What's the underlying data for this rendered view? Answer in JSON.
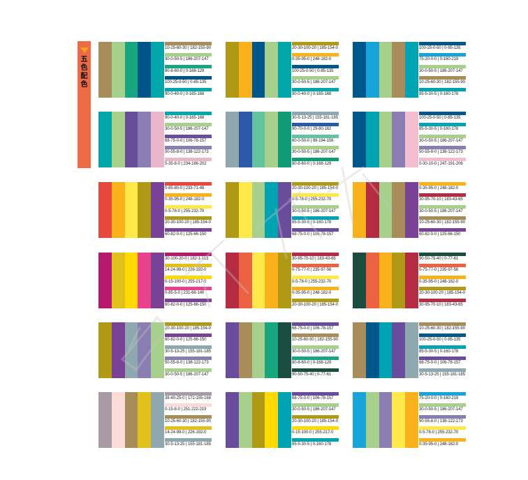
{
  "side_tab": {
    "text": "五色配色"
  },
  "palettes": [
    [
      {
        "hex": "#a88d5b",
        "label": "10-25-60-30 | 182-155-90"
      },
      {
        "hex": "#a8d08d",
        "label": "30-0-50-5 | 186-207-147"
      },
      {
        "hex": "#17a680",
        "label": "80-8-60-0 | 0-168-129"
      },
      {
        "hex": "#00548a",
        "label": "100-25-0-50 | 0-85-135"
      },
      {
        "hex": "#00a6a9",
        "label": "90-0-40-0 | 0-165-168"
      }
    ],
    [
      {
        "hex": "#b09a15",
        "label": "20-30-100-20 | 185-154-0"
      },
      {
        "hex": "#f9b21b",
        "label": "0-35-95-0 | 248-182-0"
      },
      {
        "hex": "#00578c",
        "label": "100-25-0-50 | 0-85-135"
      },
      {
        "hex": "#a8d08d",
        "label": "30-0-50-5 | 186-207-147"
      },
      {
        "hex": "#00a6a9",
        "label": "90-0-40-0 | 0-165-168"
      }
    ],
    [
      {
        "hex": "#00578c",
        "label": "100-25-0-50 | 0-85-135"
      },
      {
        "hex": "#18a3db",
        "label": "75-20-0-0 | 0-160-219"
      },
      {
        "hex": "#a8d08d",
        "label": "30-0-50-5 | 186-207-147"
      },
      {
        "hex": "#a88d5b",
        "label": "10-25-60-30 | 182-155-90"
      },
      {
        "hex": "#00a3b2",
        "label": "85-5-30-5 | 0-160-178"
      }
    ],
    [
      {
        "hex": "#00a6a9",
        "label": "90-0-40-0 | 0-165-168"
      },
      {
        "hex": "#a8d08d",
        "label": "30-0-50-5 | 186-207-147"
      },
      {
        "hex": "#6a4c9c",
        "label": "68-75-0-0 | 106-78-157"
      },
      {
        "hex": "#8a7db2",
        "label": "50-55-8-0 | 138-122-173"
      },
      {
        "hex": "#eab6ca",
        "label": "5-35-8-0 | 234-186-202"
      }
    ],
    [
      {
        "hex": "#8fa8b0",
        "label": "30-5-13-25 | 155-181-185"
      },
      {
        "hex": "#2c58a8",
        "label": "90-70-0-0 | 29-80-162"
      },
      {
        "hex": "#63c29f",
        "label": "60-0-50-0 | 99-194-156"
      },
      {
        "hex": "#a8d08d",
        "label": "30-0-50-5 | 186-207-147"
      },
      {
        "hex": "#109a76",
        "label": "80-8-60-0 | 0-168-129"
      }
    ],
    [
      {
        "hex": "#00578c",
        "label": "100-25-0-50 | 0-85-135"
      },
      {
        "hex": "#00a3b2",
        "label": "85-5-30-5 | 0-160-178"
      },
      {
        "hex": "#a8d08d",
        "label": "30-0-50-5 | 186-207-147"
      },
      {
        "hex": "#8a7db2",
        "label": "50-55-8-0 | 138-122-173"
      },
      {
        "hex": "#f2bdce",
        "label": "0-30-10-0 | 247-191-206"
      }
    ],
    [
      {
        "hex": "#e8473e",
        "label": "0-85-80-0 | 233-71-48"
      },
      {
        "hex": "#f9b21b",
        "label": "0-35-95-0 | 248-182-0"
      },
      {
        "hex": "#ffe84a",
        "label": "0-5-78-0 | 255-232-70"
      },
      {
        "hex": "#b09a15",
        "label": "20-30-100-20 | 185-154-0"
      },
      {
        "hex": "#7a4296",
        "label": "60-82-0-0 | 125-66-150"
      }
    ],
    [
      {
        "hex": "#b09a15",
        "label": "20-30-100-20 | 185-154-0"
      },
      {
        "hex": "#ffe84a",
        "label": "0-5-78-0 | 255-232-70"
      },
      {
        "hex": "#a8d08d",
        "label": "30-0-50-5 | 186-207-147"
      },
      {
        "hex": "#00a3b2",
        "label": "85-5-30-5 | 0-160-178"
      },
      {
        "hex": "#6a4c9c",
        "label": "68-75-0-0 | 106-78-157"
      }
    ],
    [
      {
        "hex": "#f9b21b",
        "label": "0-35-95-0 | 248-182-0"
      },
      {
        "hex": "#b52b41",
        "label": "30-95-70-10 | 183-43-65"
      },
      {
        "hex": "#a8d08d",
        "label": "30-0-50-5 | 186-207-147"
      },
      {
        "hex": "#a88d5b",
        "label": "10-25-60-30 | 182-155-90"
      },
      {
        "hex": "#7a4296",
        "label": "60-82-0-0 | 125-66-150"
      }
    ],
    [
      {
        "hex": "#b6186d",
        "label": "30-100-20-0 | 182-1-113"
      },
      {
        "hex": "#e2c01c",
        "label": "14-24-98-0 | 226-192-0"
      },
      {
        "hex": "#ffd900",
        "label": "0-15-100-0 | 255-217-0"
      },
      {
        "hex": "#e8428c",
        "label": "0-85-5-0 | 231-66-140"
      },
      {
        "hex": "#7a4296",
        "label": "60-82-0-0 | 125-66-150"
      }
    ],
    [
      {
        "hex": "#b52b41",
        "label": "30-95-70-10 | 183-43-65"
      },
      {
        "hex": "#ec6141",
        "label": "0-75-77-0 | 235-97-56"
      },
      {
        "hex": "#ffe84a",
        "label": "0-5-78-0 | 255-232-70"
      },
      {
        "hex": "#f9b21b",
        "label": "0-35-95-0 | 248-182-0"
      },
      {
        "hex": "#b09a15",
        "label": "20-30-100-20 | 185-154-0"
      }
    ],
    [
      {
        "hex": "#1a4d3d",
        "label": "90-50-75-40 | 0-77-61"
      },
      {
        "hex": "#ec6141",
        "label": "0-75-77-0 | 235-97-56"
      },
      {
        "hex": "#f9b21b",
        "label": "0-35-95-0 | 248-182-0"
      },
      {
        "hex": "#b09a15",
        "label": "20-30-100-20 | 185-154-0"
      },
      {
        "hex": "#b52b41",
        "label": "30-95-70-10 | 183-43-65"
      }
    ],
    [
      {
        "hex": "#b09a15",
        "label": "20-30-100-20 | 185-154-0"
      },
      {
        "hex": "#7a4296",
        "label": "60-82-0-0 | 125-66-150"
      },
      {
        "hex": "#8fa8b0",
        "label": "30-5-13-25 | 155-181-185"
      },
      {
        "hex": "#8a7db2",
        "label": "50-55-8-0 | 138-122-173"
      },
      {
        "hex": "#a8d08d",
        "label": "30-0-50-5 | 186-207-147"
      }
    ],
    [
      {
        "hex": "#6a4c9c",
        "label": "68-75-0-0 | 106-78-157"
      },
      {
        "hex": "#a88d5b",
        "label": "10-25-60-30 | 182-155-90"
      },
      {
        "hex": "#a8d08d",
        "label": "30-0-50-5 | 186-207-147"
      },
      {
        "hex": "#17a680",
        "label": "80-8-60-0 | 0-168-129"
      },
      {
        "hex": "#1a4d3d",
        "label": "90-50-75-40 | 0-77-61"
      }
    ],
    [
      {
        "hex": "#a88d5b",
        "label": "10-25-60-30 | 182-155-90"
      },
      {
        "hex": "#00578c",
        "label": "100-25-0-50 | 0-85-135"
      },
      {
        "hex": "#00a3b2",
        "label": "85-5-30-5 | 0-160-178"
      },
      {
        "hex": "#6a4c9c",
        "label": "68-75-0-0 | 106-78-157"
      },
      {
        "hex": "#8fa8b0",
        "label": "30-5-13-25 | 155-181-185"
      }
    ],
    [
      {
        "hex": "#a89aa6",
        "label": "38-40-25-0 | 171-155-168"
      },
      {
        "hex": "#fadbd8",
        "label": "0-15-8-0 | 251-222-219"
      },
      {
        "hex": "#a88d5b",
        "label": "10-25-60-30 | 182-155-90"
      },
      {
        "hex": "#e2c01c",
        "label": "14-24-98-0 | 226-192-0"
      },
      {
        "hex": "#8fa8b0",
        "label": "30-5-13-25 | 155-181-185"
      }
    ],
    [
      {
        "hex": "#6a4c9c",
        "label": "68-75-0-0 | 106-78-157"
      },
      {
        "hex": "#a8d08d",
        "label": "30-0-50-5 | 186-207-147"
      },
      {
        "hex": "#b09a15",
        "label": "20-30-100-20 | 185-154-0"
      },
      {
        "hex": "#ffd900",
        "label": "0-15-100-0 | 255-217-0"
      },
      {
        "hex": "#00a3b2",
        "label": "85-5-30-5 | 0-160-178"
      }
    ],
    [
      {
        "hex": "#18a3db",
        "label": "75-20-0-0 | 0-160-219"
      },
      {
        "hex": "#a8d08d",
        "label": "30-0-50-5 | 186-207-147"
      },
      {
        "hex": "#8a7db2",
        "label": "50-55-8-0 | 138-122-173"
      },
      {
        "hex": "#ffe84a",
        "label": "0-5-78-0 | 255-232-70"
      },
      {
        "hex": "#f9b21b",
        "label": "0-35-95-0 | 248-182-0"
      }
    ]
  ]
}
